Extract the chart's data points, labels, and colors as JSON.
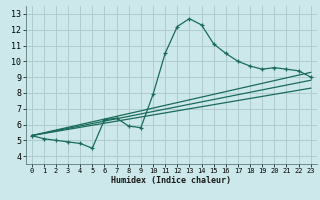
{
  "xlabel": "Humidex (Indice chaleur)",
  "bg_color": "#cce8ea",
  "grid_color": "#b0ccce",
  "line_color": "#1a6b5a",
  "xlim": [
    -0.5,
    23.5
  ],
  "ylim": [
    3.5,
    13.5
  ],
  "xticks": [
    0,
    1,
    2,
    3,
    4,
    5,
    6,
    7,
    8,
    9,
    10,
    11,
    12,
    13,
    14,
    15,
    16,
    17,
    18,
    19,
    20,
    21,
    22,
    23
  ],
  "yticks": [
    4,
    5,
    6,
    7,
    8,
    9,
    10,
    11,
    12,
    13
  ],
  "main_x": [
    0,
    1,
    2,
    3,
    4,
    5,
    6,
    7,
    8,
    9,
    10,
    11,
    12,
    13,
    14,
    15,
    16,
    17,
    18,
    19,
    20,
    21,
    22,
    23
  ],
  "main_y": [
    5.3,
    5.1,
    5.0,
    4.9,
    4.8,
    4.5,
    6.3,
    6.4,
    5.9,
    5.8,
    7.9,
    10.5,
    12.2,
    12.7,
    12.3,
    11.1,
    10.5,
    10.0,
    9.7,
    9.5,
    9.6,
    9.5,
    9.4,
    9.0
  ],
  "line1_x": [
    0,
    23
  ],
  "line1_y": [
    5.3,
    9.3
  ],
  "line2_x": [
    0,
    23
  ],
  "line2_y": [
    5.3,
    8.8
  ],
  "line3_x": [
    0,
    23
  ],
  "line3_y": [
    5.3,
    8.3
  ]
}
